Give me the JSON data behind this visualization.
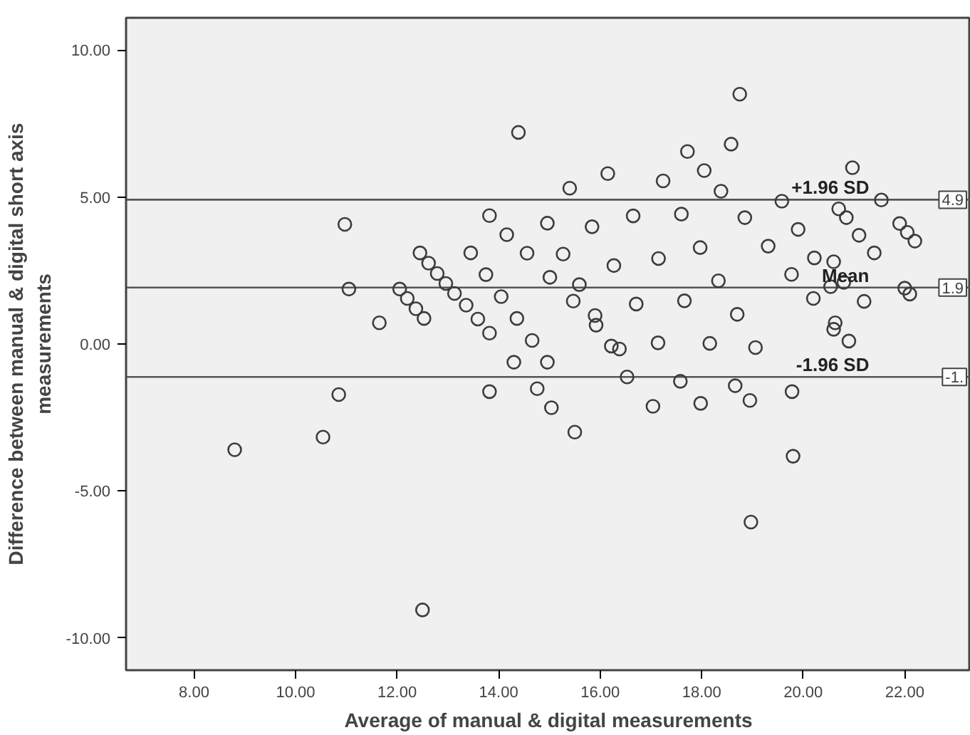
{
  "chart_data": {
    "type": "scatter",
    "xlabel": "Average of manual & digital measurements",
    "ylabel": "Difference between manual & digital short axis\nmeasurements",
    "marker": "circle",
    "grid": false,
    "color": "#3c3c3c",
    "x": [
      8.8,
      10.54,
      10.85,
      10.97,
      11.05,
      11.65,
      12.5,
      13.82,
      14.39,
      13.82,
      14.3,
      14.76,
      15.04,
      15.5,
      17.04,
      17.98,
      18.95,
      18.97,
      19.8,
      19.78,
      18.75,
      18.58,
      20.97,
      21.54,
      20.7,
      20.85,
      21.1,
      21.4,
      21.9,
      22.05,
      22.2,
      20.6,
      20.8,
      21.2,
      22.0,
      22.1,
      20.6,
      20.9,
      12.05,
      12.2,
      12.37,
      12.53,
      12.45,
      12.62,
      12.79,
      12.96,
      13.13,
      13.36,
      13.59,
      13.82,
      13.45,
      13.75,
      14.05,
      14.36,
      14.66,
      14.96,
      14.16,
      14.56,
      15.01,
      15.47,
      15.92,
      16.38,
      14.96,
      15.27,
      15.59,
      15.9,
      16.22,
      16.53,
      15.4,
      15.84,
      16.27,
      16.71,
      17.14,
      17.58,
      16.15,
      16.65,
      17.15,
      17.66,
      18.16,
      18.66,
      17.24,
      17.6,
      17.97,
      18.33,
      18.7,
      19.06,
      17.72,
      18.05,
      18.38,
      18.85,
      19.31,
      19.77,
      20.2,
      20.63,
      19.58,
      19.9,
      20.22,
      20.54
    ],
    "values": [
      -3.6,
      -3.17,
      -1.72,
      4.07,
      1.87,
      0.72,
      -9.05,
      -1.62,
      7.2,
      4.37,
      -0.62,
      -1.52,
      -2.17,
      -3.0,
      -2.12,
      -2.02,
      -1.92,
      -6.06,
      -3.82,
      -1.62,
      8.5,
      6.8,
      6.0,
      4.9,
      4.6,
      4.3,
      3.7,
      3.1,
      4.1,
      3.8,
      3.5,
      2.8,
      2.1,
      1.45,
      1.9,
      1.7,
      0.5,
      0.1,
      1.87,
      1.55,
      1.2,
      0.87,
      3.1,
      2.75,
      2.4,
      2.06,
      1.72,
      1.32,
      0.85,
      0.37,
      3.1,
      2.36,
      1.61,
      0.87,
      0.12,
      -0.62,
      3.72,
      3.09,
      2.27,
      1.46,
      0.64,
      -0.17,
      4.11,
      3.06,
      2.02,
      0.97,
      -0.07,
      -1.12,
      5.3,
      3.99,
      2.67,
      1.36,
      0.04,
      -1.27,
      5.8,
      4.36,
      2.91,
      1.47,
      0.02,
      -1.42,
      5.55,
      4.42,
      3.28,
      2.15,
      1.01,
      -0.12,
      6.55,
      5.9,
      5.2,
      4.3,
      3.33,
      2.37,
      1.55,
      0.72,
      4.86,
      3.9,
      2.93,
      1.95
    ],
    "xlim": [
      6.66,
      23.3
    ],
    "ylim": [
      -11.1,
      11.1
    ],
    "xticks": [
      {
        "value": 8,
        "label": "8.00"
      },
      {
        "value": 10,
        "label": "10.00"
      },
      {
        "value": 12,
        "label": "12.00"
      },
      {
        "value": 14,
        "label": "14.00"
      },
      {
        "value": 16,
        "label": "16.00"
      },
      {
        "value": 18,
        "label": "18.00"
      },
      {
        "value": 20,
        "label": "20.00"
      },
      {
        "value": 22,
        "label": "22.00"
      }
    ],
    "yticks": [
      {
        "value": -10,
        "label": "-10.00"
      },
      {
        "value": -5,
        "label": "-5.00"
      },
      {
        "value": 0,
        "label": "0.00"
      },
      {
        "value": 5,
        "label": "5.00"
      },
      {
        "value": 10,
        "label": "10.00"
      }
    ],
    "ref_lines": [
      {
        "axis": "y",
        "value": 4.91,
        "label": "+1.96 SD",
        "color": "#555555"
      },
      {
        "axis": "y",
        "value": 1.92,
        "label": "Mean",
        "color": "#555555"
      },
      {
        "axis": "y",
        "value": -1.12,
        "label": "-1.96 SD",
        "color": "#555555"
      }
    ],
    "annotations": [
      "4.9",
      "1.9",
      "-1."
    ]
  }
}
